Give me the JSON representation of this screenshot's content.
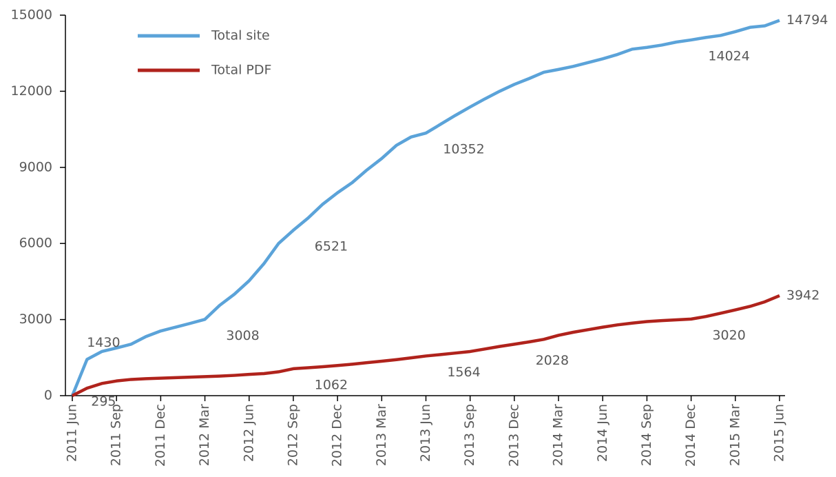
{
  "chart_data": {
    "type": "line",
    "categories": [
      "2011 Jun",
      null,
      null,
      "2011 Sep",
      null,
      null,
      "2011 Dec",
      null,
      null,
      "2012 Mar",
      null,
      null,
      "2012 Jun",
      null,
      null,
      "2012 Sep",
      null,
      null,
      "2012 Dec",
      null,
      null,
      "2013 Mar",
      null,
      null,
      "2013 Jun",
      null,
      null,
      "2013 Sep",
      null,
      null,
      "2013 Dec",
      null,
      null,
      "2014 Mar",
      null,
      null,
      "2014 Jun",
      null,
      null,
      "2014 Sep",
      null,
      null,
      "2014 Dec",
      null,
      null,
      "2015 Mar",
      null,
      null,
      "2015 Jun"
    ],
    "series": [
      {
        "name": "Total site",
        "color": "#5ba3d9",
        "values": [
          0,
          1430,
          1740,
          1880,
          2030,
          2330,
          2550,
          2700,
          2850,
          3008,
          3560,
          4000,
          4530,
          5200,
          6000,
          6521,
          7000,
          7550,
          8000,
          8400,
          8900,
          9350,
          9870,
          10200,
          10352,
          10700,
          11050,
          11380,
          11700,
          12000,
          12270,
          12500,
          12750,
          12860,
          12980,
          13130,
          13280,
          13450,
          13660,
          13730,
          13820,
          13940,
          14024,
          14120,
          14200,
          14350,
          14520,
          14580,
          14794
        ],
        "data_label_points": [
          1,
          9,
          15,
          24,
          42,
          48
        ]
      },
      {
        "name": "Total PDF",
        "color": "#b0231c",
        "values": [
          0,
          295,
          480,
          580,
          640,
          670,
          690,
          710,
          730,
          750,
          770,
          800,
          840,
          870,
          940,
          1062,
          1100,
          1140,
          1190,
          1240,
          1300,
          1360,
          1420,
          1490,
          1564,
          1620,
          1680,
          1740,
          1840,
          1940,
          2028,
          2120,
          2220,
          2380,
          2500,
          2600,
          2700,
          2790,
          2860,
          2920,
          2960,
          2990,
          3020,
          3120,
          3250,
          3380,
          3520,
          3700,
          3942
        ],
        "data_label_points": [
          1,
          15,
          24,
          30,
          42,
          48
        ]
      }
    ],
    "ylim": [
      0,
      15000
    ],
    "yticks": [
      0,
      3000,
      6000,
      9000,
      12000,
      15000
    ],
    "legend": "top-left"
  }
}
